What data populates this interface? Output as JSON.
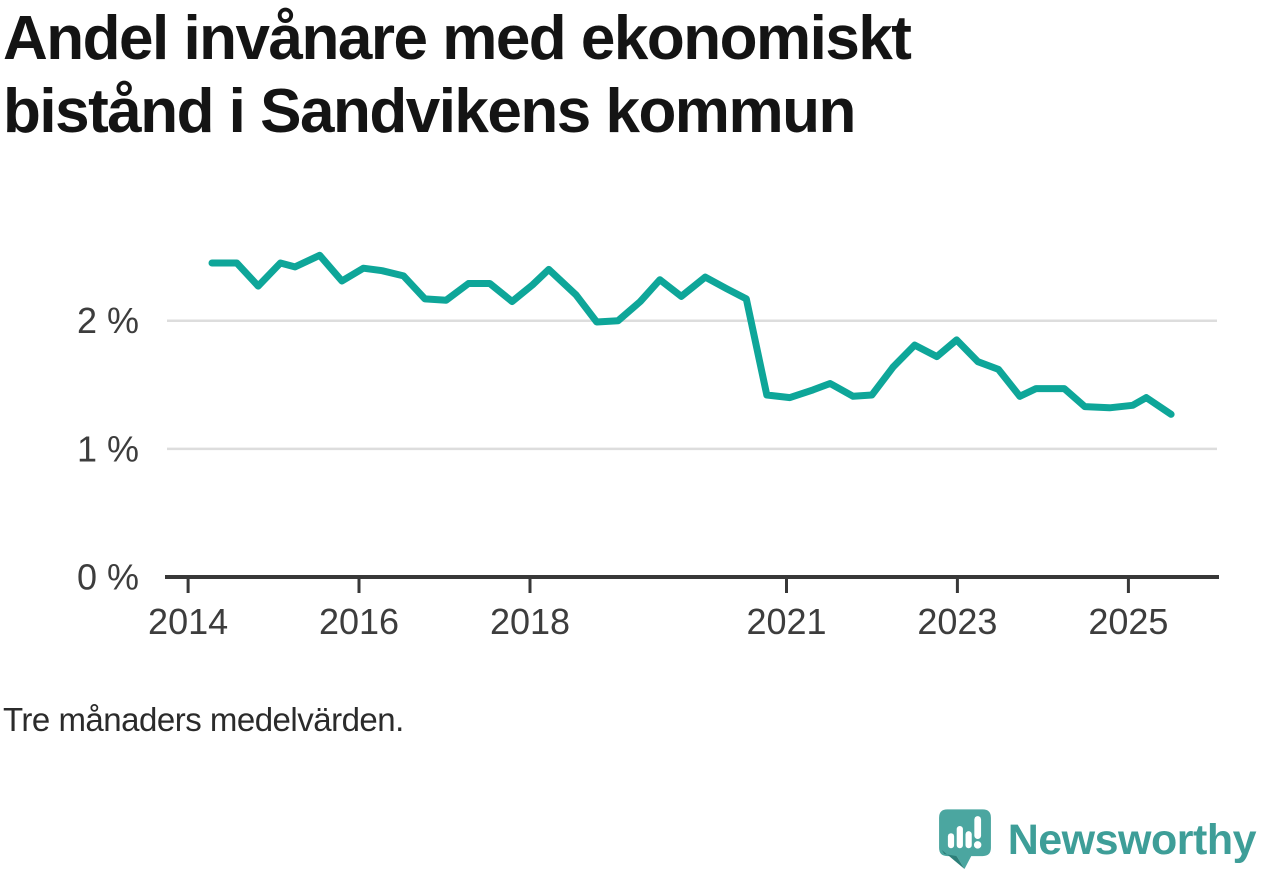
{
  "chart": {
    "title": "Andel invånare med ekonomiskt bistånd i Sandvikens kommun",
    "note": "Tre månaders medelvärden."
  },
  "branding": {
    "wordmark": "Newsworthy"
  },
  "colors": {
    "line": "#0ea699",
    "grid": "#dddddd",
    "axis": "#383838",
    "tick_label": "#3d3d3d",
    "title": "#141414",
    "note": "#2b2b2b",
    "logo": "#4ba6a0",
    "logo_shade": "#2c7f79",
    "wordmark": "#3e9e98",
    "background": "#ffffff"
  },
  "chart_data": {
    "type": "line",
    "title": "Andel invånare med ekonomiskt bistånd i Sandvikens kommun",
    "note": "Tre månaders medelvärden.",
    "unit": "%",
    "grid": "horizontal-y",
    "legend": "none",
    "xlim": [
      2013.73,
      2026.06
    ],
    "ylim": [
      0,
      2.7
    ],
    "y_ticks": [
      {
        "label": "2 %",
        "value": 2
      },
      {
        "label": "1 %",
        "value": 1
      },
      {
        "label": "0 %",
        "value": 0
      }
    ],
    "x_ticks": [
      {
        "label": "2014",
        "value": 2014
      },
      {
        "label": "2016",
        "value": 2016
      },
      {
        "label": "2018",
        "value": 2018
      },
      {
        "label": "2021",
        "value": 2021
      },
      {
        "label": "2023",
        "value": 2023
      },
      {
        "label": "2025",
        "value": 2025
      }
    ],
    "series": [
      {
        "name": "Andel invånare med ekonomiskt bistånd",
        "color": "#0ea699",
        "points": [
          [
            2014.28,
            2.45
          ],
          [
            2014.57,
            2.45
          ],
          [
            2014.82,
            2.27
          ],
          [
            2015.08,
            2.45
          ],
          [
            2015.25,
            2.42
          ],
          [
            2015.54,
            2.51
          ],
          [
            2015.8,
            2.31
          ],
          [
            2016.05,
            2.41
          ],
          [
            2016.27,
            2.39
          ],
          [
            2016.52,
            2.35
          ],
          [
            2016.77,
            2.17
          ],
          [
            2017.02,
            2.16
          ],
          [
            2017.28,
            2.29
          ],
          [
            2017.53,
            2.29
          ],
          [
            2017.79,
            2.15
          ],
          [
            2018.03,
            2.28
          ],
          [
            2018.22,
            2.4
          ],
          [
            2018.54,
            2.2
          ],
          [
            2018.78,
            1.99
          ],
          [
            2019.03,
            2.0
          ],
          [
            2019.29,
            2.15
          ],
          [
            2019.52,
            2.32
          ],
          [
            2019.77,
            2.19
          ],
          [
            2020.05,
            2.34
          ],
          [
            2020.3,
            2.25
          ],
          [
            2020.53,
            2.17
          ],
          [
            2020.77,
            1.42
          ],
          [
            2021.04,
            1.4
          ],
          [
            2021.31,
            1.46
          ],
          [
            2021.51,
            1.51
          ],
          [
            2021.78,
            1.41
          ],
          [
            2022.0,
            1.42
          ],
          [
            2022.25,
            1.64
          ],
          [
            2022.5,
            1.81
          ],
          [
            2022.76,
            1.72
          ],
          [
            2022.99,
            1.85
          ],
          [
            2023.24,
            1.68
          ],
          [
            2023.48,
            1.62
          ],
          [
            2023.73,
            1.41
          ],
          [
            2023.92,
            1.47
          ],
          [
            2024.25,
            1.47
          ],
          [
            2024.49,
            1.33
          ],
          [
            2024.78,
            1.32
          ],
          [
            2025.05,
            1.34
          ],
          [
            2025.21,
            1.4
          ],
          [
            2025.5,
            1.27
          ]
        ]
      }
    ]
  }
}
